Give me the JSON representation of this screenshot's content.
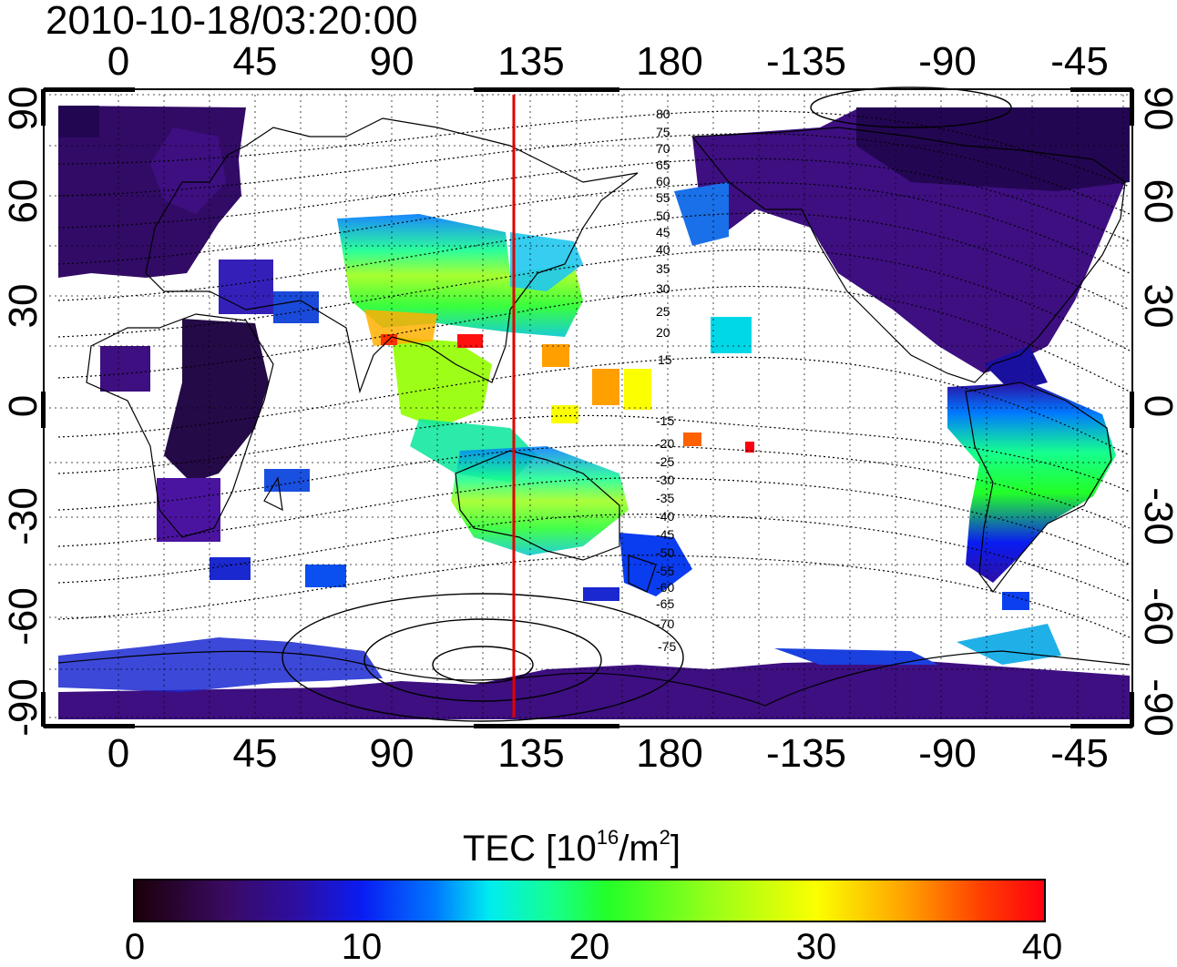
{
  "title": "2010-10-18/03:20:00",
  "axes": {
    "top_lon_ticks": [
      "0",
      "45",
      "90",
      "135",
      "180",
      "-135",
      "-90",
      "-45"
    ],
    "bottom_lon_ticks": [
      "0",
      "45",
      "90",
      "135",
      "180",
      "-135",
      "-90",
      "-45"
    ],
    "left_lat_ticks": [
      "90",
      "60",
      "30",
      "0",
      "-30",
      "-60",
      "-90"
    ],
    "right_lat_ticks": [
      "90",
      "60",
      "30",
      "0",
      "-30",
      "-60",
      "-90"
    ]
  },
  "map": {
    "marker_line_longitude": 130,
    "marker_line_color": "#e00000",
    "contour_labels": [
      "80",
      "75",
      "70",
      "65",
      "60",
      "55",
      "50",
      "45",
      "40",
      "35",
      "30",
      "25",
      "20",
      "15",
      "-15",
      "-20",
      "-25",
      "-30",
      "-35",
      "-40",
      "-45",
      "-50",
      "-55",
      "-60",
      "-65",
      "-70",
      "-75"
    ]
  },
  "colorbar": {
    "title_main": "TEC  [10",
    "title_sup1": "16",
    "title_mid": "/m",
    "title_sup2": "2",
    "title_end": "]",
    "min": 0,
    "max": 40,
    "ticks": [
      "0",
      "10",
      "20",
      "30",
      "40"
    ],
    "colors": [
      "#1a0008",
      "#3a0a62",
      "#0a1cf2",
      "#00ecf0",
      "#23ff28",
      "#fbff00",
      "#ff9f00",
      "#ff0010"
    ]
  }
}
